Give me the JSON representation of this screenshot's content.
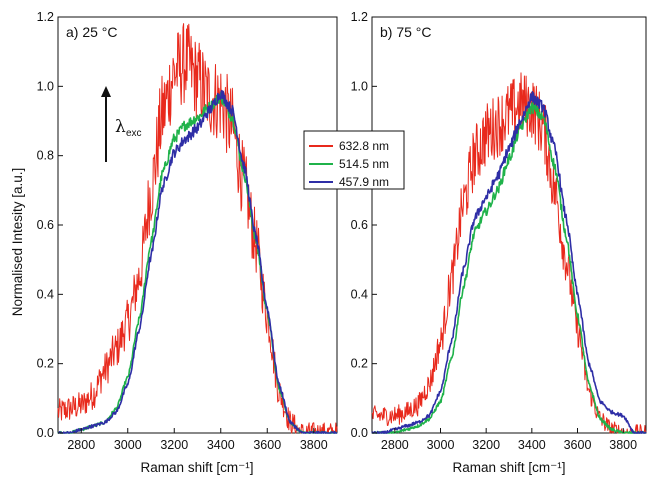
{
  "chart_data": [
    {
      "type": "line",
      "panel_label": "a)  25 °C",
      "xlabel": "Raman shift [cm⁻¹]",
      "ylabel": "Normalised Intesity [a.u.]",
      "xlim": [
        2700,
        3900
      ],
      "ylim": [
        0.0,
        1.2
      ],
      "xticks": [
        2800,
        3000,
        3200,
        3400,
        3600,
        3800
      ],
      "yticks": [
        0.0,
        0.2,
        0.4,
        0.6,
        0.8,
        1.0,
        1.2
      ],
      "annotation": {
        "symbol": "λ",
        "subscript": "exc"
      },
      "series": [
        {
          "name": "632.8 nm",
          "color": "#e8291c",
          "noise": 0.09,
          "x": [
            2700,
            2750,
            2800,
            2850,
            2900,
            2950,
            3000,
            3050,
            3100,
            3150,
            3200,
            3250,
            3300,
            3350,
            3400,
            3450,
            3500,
            3550,
            3600,
            3650,
            3700,
            3750,
            3800,
            3850,
            3900
          ],
          "y": [
            0.06,
            0.07,
            0.08,
            0.11,
            0.18,
            0.24,
            0.32,
            0.45,
            0.7,
            0.92,
            1.04,
            1.07,
            1.02,
            0.97,
            0.96,
            0.88,
            0.72,
            0.55,
            0.34,
            0.12,
            0.03,
            0.0,
            0.0,
            0.0,
            0.0
          ]
        },
        {
          "name": "514.5 nm",
          "color": "#1fb24a",
          "noise": 0.012,
          "x": [
            2700,
            2750,
            2800,
            2850,
            2900,
            2950,
            3000,
            3050,
            3100,
            3150,
            3200,
            3250,
            3300,
            3350,
            3400,
            3450,
            3500,
            3550,
            3600,
            3650,
            3700,
            3750,
            3800,
            3850,
            3900
          ],
          "y": [
            0.0,
            0.0,
            0.01,
            0.02,
            0.03,
            0.07,
            0.16,
            0.33,
            0.55,
            0.75,
            0.85,
            0.89,
            0.91,
            0.94,
            0.97,
            0.91,
            0.75,
            0.56,
            0.35,
            0.13,
            0.03,
            0.0,
            0.0,
            0.0,
            0.0
          ]
        },
        {
          "name": "457.9 nm",
          "color": "#2e2ea6",
          "noise": 0.012,
          "x": [
            2700,
            2750,
            2800,
            2850,
            2900,
            2950,
            3000,
            3050,
            3100,
            3150,
            3200,
            3250,
            3300,
            3350,
            3400,
            3450,
            3500,
            3550,
            3600,
            3650,
            3700,
            3750,
            3800,
            3850,
            3900
          ],
          "y": [
            0.0,
            0.0,
            0.01,
            0.02,
            0.03,
            0.06,
            0.14,
            0.3,
            0.51,
            0.71,
            0.81,
            0.85,
            0.88,
            0.93,
            0.98,
            0.93,
            0.77,
            0.57,
            0.36,
            0.14,
            0.03,
            0.0,
            0.0,
            0.0,
            0.0
          ]
        }
      ]
    },
    {
      "type": "line",
      "panel_label": "b)  75 °C",
      "xlabel": "Raman shift [cm⁻¹]",
      "ylabel": "",
      "xlim": [
        2700,
        3900
      ],
      "ylim": [
        0.0,
        1.2
      ],
      "xticks": [
        2800,
        3000,
        3200,
        3400,
        3600,
        3800
      ],
      "yticks": [
        0.0,
        0.2,
        0.4,
        0.6,
        0.8,
        1.0,
        1.2
      ],
      "series": [
        {
          "name": "632.8 nm",
          "color": "#e8291c",
          "noise": 0.07,
          "x": [
            2700,
            2750,
            2800,
            2850,
            2900,
            2950,
            3000,
            3050,
            3100,
            3150,
            3200,
            3250,
            3300,
            3350,
            3400,
            3450,
            3500,
            3550,
            3600,
            3650,
            3700,
            3750,
            3800,
            3850,
            3900
          ],
          "y": [
            0.05,
            0.05,
            0.05,
            0.06,
            0.08,
            0.14,
            0.26,
            0.45,
            0.66,
            0.8,
            0.86,
            0.89,
            0.92,
            0.95,
            0.94,
            0.88,
            0.7,
            0.5,
            0.3,
            0.12,
            0.04,
            0.01,
            0.0,
            0.0,
            0.0
          ]
        },
        {
          "name": "514.5 nm",
          "color": "#1fb24a",
          "noise": 0.012,
          "x": [
            2700,
            2750,
            2800,
            2850,
            2900,
            2950,
            3000,
            3050,
            3100,
            3150,
            3200,
            3250,
            3300,
            3350,
            3400,
            3450,
            3500,
            3550,
            3600,
            3650,
            3700,
            3750,
            3800,
            3850,
            3900
          ],
          "y": [
            0.0,
            0.0,
            0.0,
            0.01,
            0.02,
            0.04,
            0.09,
            0.22,
            0.42,
            0.58,
            0.64,
            0.7,
            0.79,
            0.88,
            0.94,
            0.91,
            0.77,
            0.57,
            0.34,
            0.14,
            0.04,
            0.01,
            0.0,
            0.0,
            0.0
          ]
        },
        {
          "name": "457.9 nm",
          "color": "#2e2ea6",
          "noise": 0.012,
          "x": [
            2700,
            2750,
            2800,
            2850,
            2900,
            2950,
            3000,
            3050,
            3100,
            3150,
            3200,
            3250,
            3300,
            3350,
            3400,
            3450,
            3500,
            3550,
            3600,
            3650,
            3700,
            3750,
            3800,
            3850,
            3900
          ],
          "y": [
            0.0,
            0.0,
            0.01,
            0.02,
            0.03,
            0.05,
            0.12,
            0.27,
            0.47,
            0.62,
            0.68,
            0.74,
            0.82,
            0.9,
            0.97,
            0.94,
            0.82,
            0.62,
            0.4,
            0.2,
            0.09,
            0.06,
            0.05,
            0.0,
            0.0
          ]
        }
      ]
    }
  ],
  "legend": {
    "placement": "between-panels",
    "items": [
      {
        "label": "632.8 nm",
        "color": "#e8291c"
      },
      {
        "label": "514.5 nm",
        "color": "#1fb24a"
      },
      {
        "label": "457.9 nm",
        "color": "#2e2ea6"
      }
    ]
  }
}
